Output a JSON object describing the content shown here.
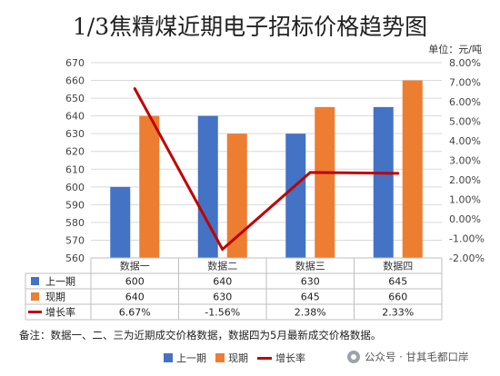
{
  "chart_data": {
    "type": "bar",
    "title": "1/3焦精煤近期电子招标价格趋势图",
    "unit_label": "单位：元/吨",
    "categories": [
      "数据一",
      "数据二",
      "数据三",
      "数据四"
    ],
    "series": [
      {
        "name": "上一期",
        "type": "bar",
        "axis": "left",
        "color": "#4472C4",
        "values": [
          600,
          640,
          630,
          645
        ],
        "labels": [
          "600",
          "640",
          "630",
          "645"
        ]
      },
      {
        "name": "现期",
        "type": "bar",
        "axis": "left",
        "color": "#ED7D31",
        "values": [
          640,
          630,
          645,
          660
        ],
        "labels": [
          "640",
          "630",
          "645",
          "660"
        ]
      },
      {
        "name": "增长率",
        "type": "line",
        "axis": "right",
        "color": "#C00000",
        "values": [
          6.67,
          -1.56,
          2.38,
          2.33
        ],
        "labels": [
          "6.67%",
          "-1.56%",
          "2.38%",
          "2.33%"
        ]
      }
    ],
    "ylim": [
      560,
      670
    ],
    "yticks": [
      "560",
      "570",
      "580",
      "590",
      "600",
      "610",
      "620",
      "630",
      "640",
      "650",
      "660",
      "670"
    ],
    "y2lim": [
      -2.0,
      8.0
    ],
    "y2ticks": [
      "-2.00%",
      "-1.00%",
      "0.00%",
      "1.00%",
      "2.00%",
      "3.00%",
      "4.00%",
      "5.00%",
      "6.00%",
      "7.00%",
      "8.00%"
    ],
    "grid": true,
    "data_table": true,
    "legend_placement": "bottom"
  },
  "note": "备注：数据一、二、三为近期成交价格数据，数据四为5月最新成交价格数据。",
  "watermark": "公众号 · 甘其毛都口岸"
}
